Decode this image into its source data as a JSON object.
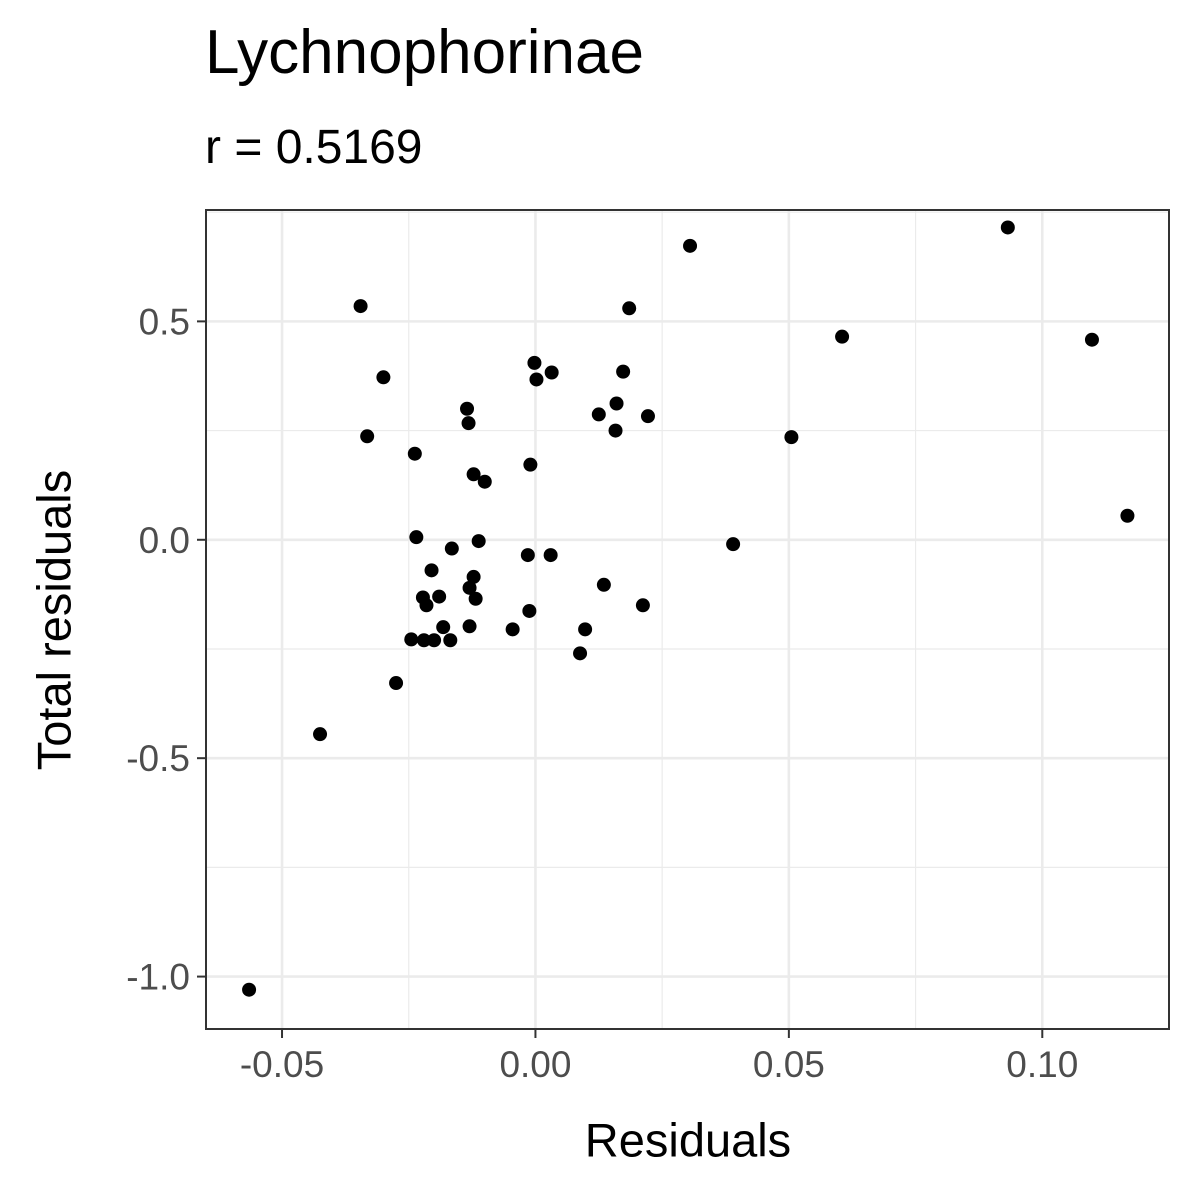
{
  "chart_data": {
    "type": "scatter",
    "title": "Lychnophorinae",
    "subtitle": "r = 0.5169",
    "xlabel": "Residuals",
    "ylabel": "Total residuals",
    "xlim": [
      -0.065,
      0.125
    ],
    "ylim": [
      -1.12,
      0.755
    ],
    "x_ticks": [
      -0.05,
      0.0,
      0.05,
      0.1
    ],
    "x_tick_labels": [
      "-0.05",
      "0.00",
      "0.05",
      "0.10"
    ],
    "y_ticks": [
      -1.0,
      -0.5,
      0.0,
      0.5
    ],
    "y_tick_labels": [
      "-1.0",
      "-0.5",
      "0.0",
      "0.5"
    ],
    "grid": true,
    "point_color": "#000000",
    "points": [
      {
        "x": -0.0565,
        "y": -1.03
      },
      {
        "x": -0.0425,
        "y": -0.445
      },
      {
        "x": -0.0275,
        "y": -0.328
      },
      {
        "x": -0.0345,
        "y": 0.535
      },
      {
        "x": -0.03,
        "y": 0.372
      },
      {
        "x": -0.0332,
        "y": 0.237
      },
      {
        "x": -0.0238,
        "y": 0.197
      },
      {
        "x": -0.0235,
        "y": 0.006
      },
      {
        "x": -0.0165,
        "y": -0.02
      },
      {
        "x": -0.0205,
        "y": -0.07
      },
      {
        "x": -0.0222,
        "y": -0.132
      },
      {
        "x": -0.0215,
        "y": -0.15
      },
      {
        "x": -0.019,
        "y": -0.13
      },
      {
        "x": -0.0182,
        "y": -0.2
      },
      {
        "x": -0.0245,
        "y": -0.228
      },
      {
        "x": -0.022,
        "y": -0.23
      },
      {
        "x": -0.02,
        "y": -0.23
      },
      {
        "x": -0.0168,
        "y": -0.23
      },
      {
        "x": -0.0135,
        "y": 0.3
      },
      {
        "x": -0.0132,
        "y": 0.267
      },
      {
        "x": -0.0122,
        "y": 0.15
      },
      {
        "x": -0.01,
        "y": 0.133
      },
      {
        "x": -0.0112,
        "y": -0.003
      },
      {
        "x": -0.0122,
        "y": -0.085
      },
      {
        "x": -0.013,
        "y": -0.11
      },
      {
        "x": -0.0118,
        "y": -0.135
      },
      {
        "x": -0.013,
        "y": -0.198
      },
      {
        "x": -0.0045,
        "y": -0.205
      },
      {
        "x": -0.0015,
        "y": -0.035
      },
      {
        "x": -0.0012,
        "y": -0.163
      },
      {
        "x": -0.001,
        "y": 0.172
      },
      {
        "x": -0.0002,
        "y": 0.405
      },
      {
        "x": 0.0002,
        "y": 0.367
      },
      {
        "x": 0.0032,
        "y": 0.383
      },
      {
        "x": 0.003,
        "y": -0.035
      },
      {
        "x": 0.0088,
        "y": -0.26
      },
      {
        "x": 0.0098,
        "y": -0.205
      },
      {
        "x": 0.0125,
        "y": 0.287
      },
      {
        "x": 0.0135,
        "y": -0.103
      },
      {
        "x": 0.016,
        "y": 0.312
      },
      {
        "x": 0.0158,
        "y": 0.25
      },
      {
        "x": 0.0173,
        "y": 0.385
      },
      {
        "x": 0.0185,
        "y": 0.53
      },
      {
        "x": 0.0212,
        "y": -0.15
      },
      {
        "x": 0.0222,
        "y": 0.283
      },
      {
        "x": 0.0305,
        "y": 0.673
      },
      {
        "x": 0.039,
        "y": -0.01
      },
      {
        "x": 0.0505,
        "y": 0.235
      },
      {
        "x": 0.0605,
        "y": 0.465
      },
      {
        "x": 0.0932,
        "y": 0.715
      },
      {
        "x": 0.1098,
        "y": 0.458
      },
      {
        "x": 0.1168,
        "y": 0.055
      }
    ]
  }
}
